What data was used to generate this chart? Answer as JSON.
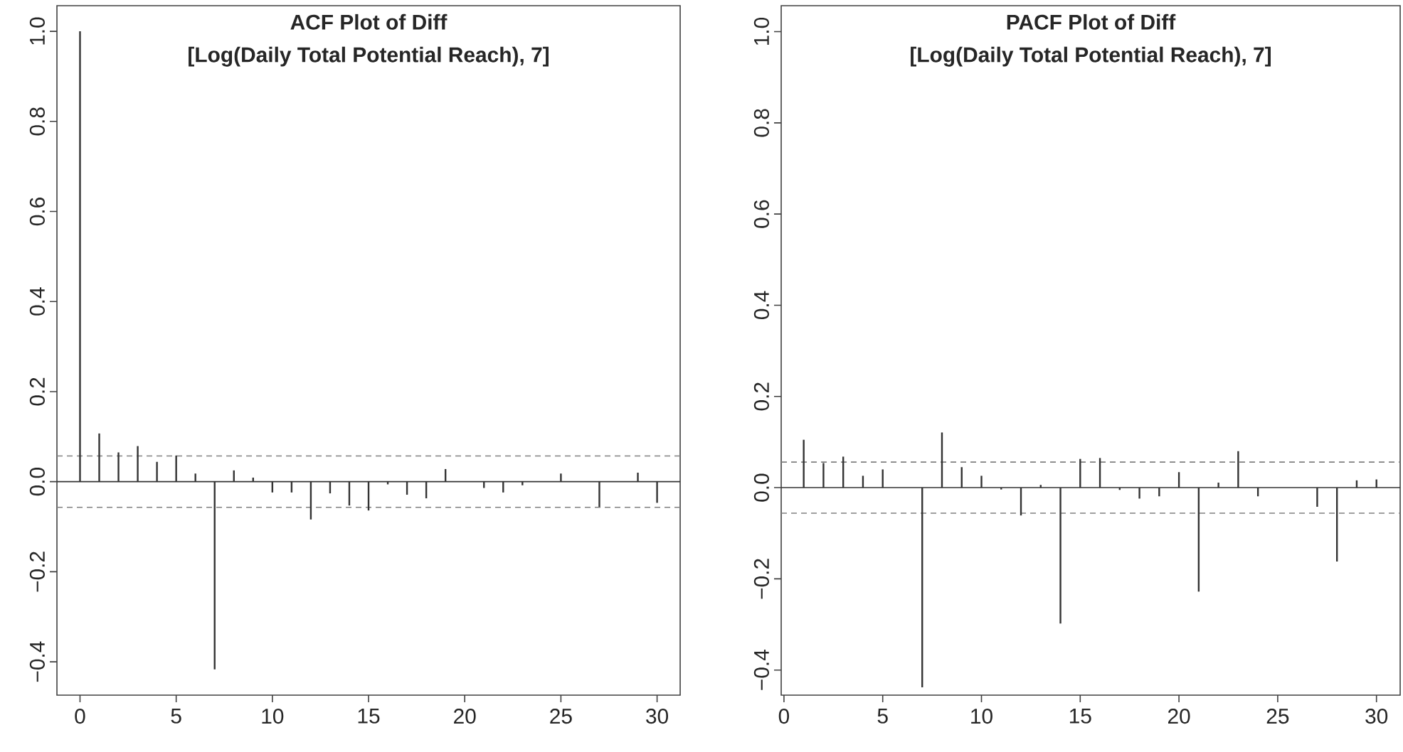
{
  "chart_data": [
    {
      "type": "bar",
      "title": "ACF Plot of Diff",
      "subtitle": "[Log(Daily Total Potential Reach), 7]",
      "x": [
        0,
        1,
        2,
        3,
        4,
        5,
        6,
        7,
        8,
        9,
        10,
        11,
        12,
        13,
        14,
        15,
        16,
        17,
        18,
        19,
        20,
        21,
        22,
        23,
        24,
        25,
        26,
        27,
        28,
        29,
        30
      ],
      "values": [
        1.0,
        0.107,
        0.065,
        0.079,
        0.044,
        0.058,
        0.018,
        -0.417,
        0.025,
        0.009,
        -0.024,
        -0.024,
        -0.084,
        -0.026,
        -0.053,
        -0.064,
        -0.006,
        -0.029,
        -0.037,
        0.028,
        null,
        -0.014,
        -0.024,
        -0.008,
        null,
        0.018,
        null,
        -0.056,
        null,
        0.02,
        -0.047
      ],
      "color": "#333333",
      "xlim": [
        -1.2,
        31.2
      ],
      "ylim": [
        -0.474,
        1.057
      ],
      "xticks": [
        0,
        5,
        10,
        15,
        20,
        25,
        30
      ],
      "yticks": [
        {
          "value": -0.4,
          "label": "−0.4"
        },
        {
          "value": -0.2,
          "label": "−0.2"
        },
        {
          "value": 0,
          "label": "0.0"
        },
        0.2,
        0.4,
        0.6,
        0.8,
        {
          "value": 1.0,
          "label": "1.0"
        }
      ],
      "ref_lines": [
        {
          "axis": "y",
          "value": 0,
          "color": "#333333",
          "line_style": "solid"
        },
        {
          "axis": "y",
          "value": 0.057,
          "color": "#808080",
          "line_style": "dashed"
        },
        {
          "axis": "y",
          "value": -0.057,
          "color": "#808080",
          "line_style": "dashed"
        }
      ]
    },
    {
      "type": "bar",
      "title": "PACF Plot of Diff",
      "subtitle": "[Log(Daily Total Potential Reach), 7]",
      "x": [
        1,
        2,
        3,
        4,
        5,
        6,
        7,
        8,
        9,
        10,
        11,
        12,
        13,
        14,
        15,
        16,
        17,
        18,
        19,
        20,
        21,
        22,
        23,
        24,
        25,
        26,
        27,
        28,
        29,
        30
      ],
      "values": [
        0.105,
        0.054,
        0.068,
        0.026,
        0.04,
        null,
        -0.438,
        0.121,
        0.045,
        0.026,
        -0.004,
        -0.061,
        0.006,
        -0.298,
        0.063,
        0.065,
        -0.005,
        -0.024,
        -0.019,
        0.034,
        -0.228,
        0.011,
        0.08,
        -0.019,
        null,
        null,
        -0.042,
        -0.162,
        0.016,
        0.018
      ],
      "color": "#333333",
      "xlim": [
        -0.14,
        31.2
      ],
      "ylim": [
        -0.455,
        1.057
      ],
      "xticks": [
        0,
        5,
        10,
        15,
        20,
        25,
        30
      ],
      "yticks": [
        {
          "value": -0.4,
          "label": "−0.4"
        },
        {
          "value": -0.2,
          "label": "−0.2"
        },
        {
          "value": 0,
          "label": "0.0"
        },
        0.2,
        0.4,
        0.6,
        0.8,
        {
          "value": 1.0,
          "label": "1.0"
        }
      ],
      "ref_lines": [
        {
          "axis": "y",
          "value": 0,
          "color": "#333333",
          "line_style": "solid"
        },
        {
          "axis": "y",
          "value": 0.056,
          "color": "#808080",
          "line_style": "dashed"
        },
        {
          "axis": "y",
          "value": -0.056,
          "color": "#808080",
          "line_style": "dashed"
        }
      ]
    }
  ]
}
